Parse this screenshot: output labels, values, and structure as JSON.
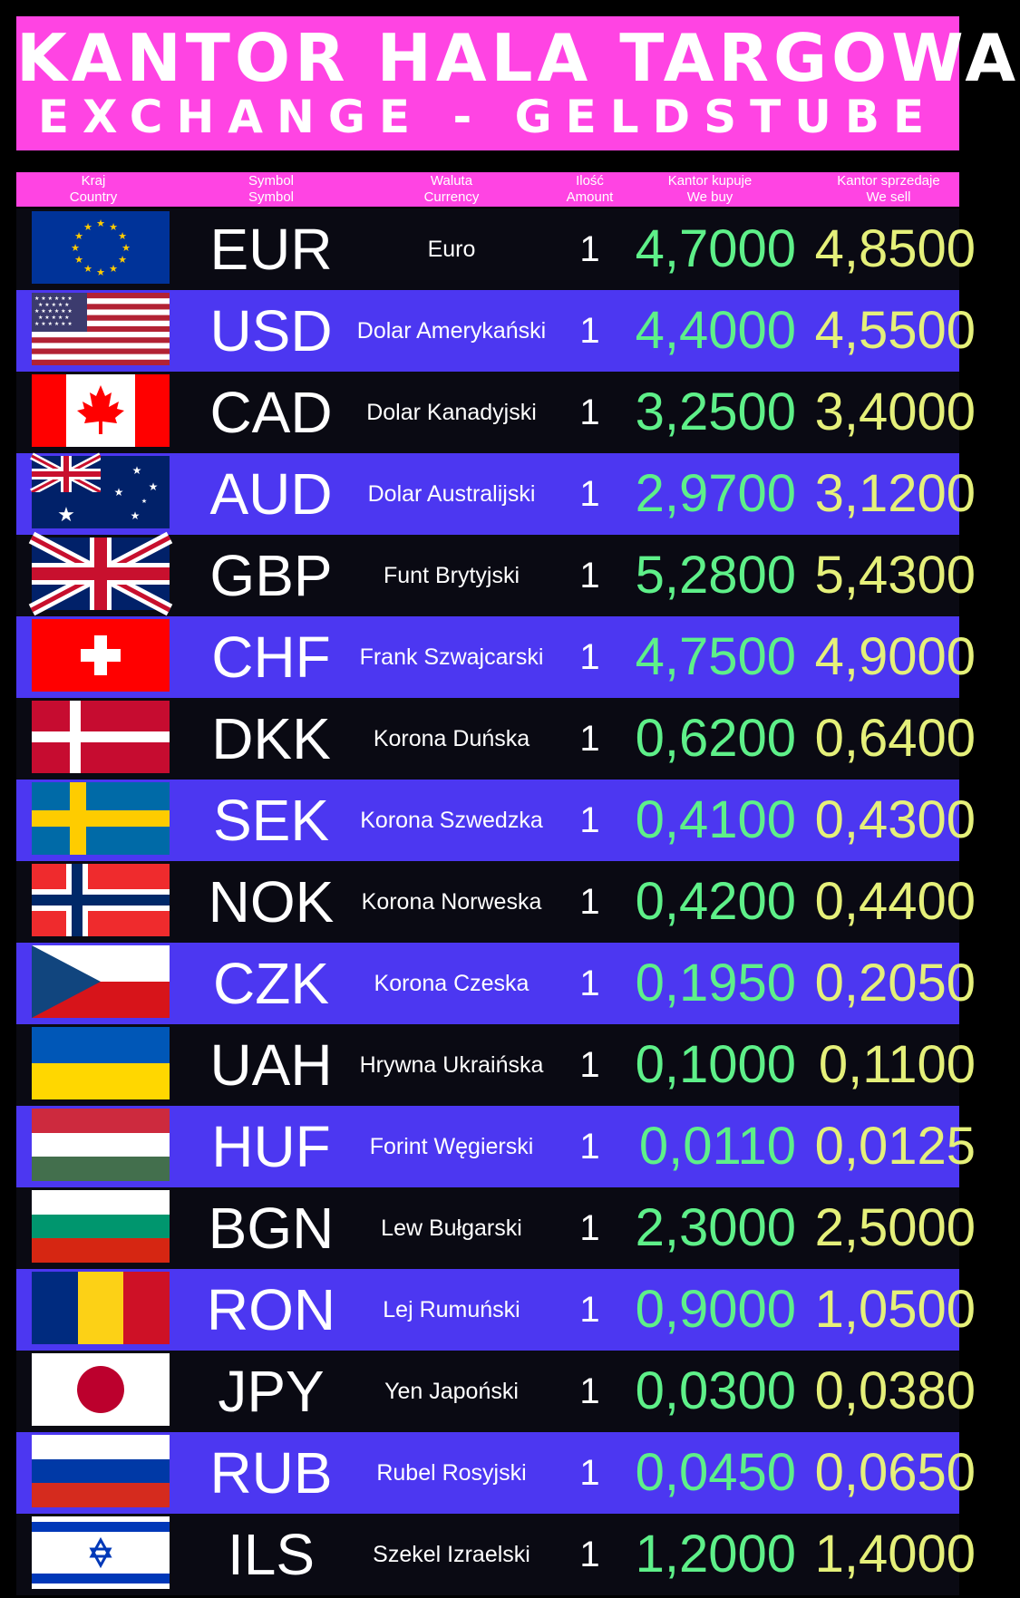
{
  "header": {
    "title": "KANTOR HALA TARGOWA",
    "subtitle": "EXCHANGE - GELDSTUBE"
  },
  "columns": [
    {
      "pl": "Kraj",
      "en": "Country"
    },
    {
      "pl": "Symbol",
      "en": "Symbol"
    },
    {
      "pl": "Waluta",
      "en": "Currency"
    },
    {
      "pl": "Ilość",
      "en": "Amount"
    },
    {
      "pl": "Kantor kupuje",
      "en": "We buy"
    },
    {
      "pl": "Kantor sprzedaje",
      "en": "We sell"
    }
  ],
  "rates": [
    {
      "flag": "eu-flag-icon",
      "symbol": "EUR",
      "currency": "Euro",
      "amount": "1",
      "buy": "4,7000",
      "sell": "4,8500"
    },
    {
      "flag": "us-flag-icon",
      "symbol": "USD",
      "currency": "Dolar Amerykański",
      "amount": "1",
      "buy": "4,4000",
      "sell": "4,5500"
    },
    {
      "flag": "ca-flag-icon",
      "symbol": "CAD",
      "currency": "Dolar Kanadyjski",
      "amount": "1",
      "buy": "3,2500",
      "sell": "3,4000"
    },
    {
      "flag": "au-flag-icon",
      "symbol": "AUD",
      "currency": "Dolar Australijski",
      "amount": "1",
      "buy": "2,9700",
      "sell": "3,1200"
    },
    {
      "flag": "gb-flag-icon",
      "symbol": "GBP",
      "currency": "Funt Brytyjski",
      "amount": "1",
      "buy": "5,2800",
      "sell": "5,4300"
    },
    {
      "flag": "ch-flag-icon",
      "symbol": "CHF",
      "currency": "Frank Szwajcarski",
      "amount": "1",
      "buy": "4,7500",
      "sell": "4,9000"
    },
    {
      "flag": "dk-flag-icon",
      "symbol": "DKK",
      "currency": "Korona Duńska",
      "amount": "1",
      "buy": "0,6200",
      "sell": "0,6400"
    },
    {
      "flag": "se-flag-icon",
      "symbol": "SEK",
      "currency": "Korona Szwedzka",
      "amount": "1",
      "buy": "0,4100",
      "sell": "0,4300"
    },
    {
      "flag": "no-flag-icon",
      "symbol": "NOK",
      "currency": "Korona Norweska",
      "amount": "1",
      "buy": "0,4200",
      "sell": "0,4400"
    },
    {
      "flag": "cz-flag-icon",
      "symbol": "CZK",
      "currency": "Korona Czeska",
      "amount": "1",
      "buy": "0,1950",
      "sell": "0,2050"
    },
    {
      "flag": "ua-flag-icon",
      "symbol": "UAH",
      "currency": "Hrywna Ukraińska",
      "amount": "1",
      "buy": "0,1000",
      "sell": "0,1100"
    },
    {
      "flag": "hu-flag-icon",
      "symbol": "HUF",
      "currency": "Forint Węgierski",
      "amount": "1",
      "buy": "0,0110",
      "sell": "0,0125"
    },
    {
      "flag": "bg-flag-icon",
      "symbol": "BGN",
      "currency": "Lew Bułgarski",
      "amount": "1",
      "buy": "2,3000",
      "sell": "2,5000"
    },
    {
      "flag": "ro-flag-icon",
      "symbol": "RON",
      "currency": "Lej Rumuński",
      "amount": "1",
      "buy": "0,9000",
      "sell": "1,0500"
    },
    {
      "flag": "jp-flag-icon",
      "symbol": "JPY",
      "currency": "Yen Japoński",
      "amount": "1",
      "buy": "0,0300",
      "sell": "0,0380"
    },
    {
      "flag": "ru-flag-icon",
      "symbol": "RUB",
      "currency": "Rubel Rosyjski",
      "amount": "1",
      "buy": "0,0450",
      "sell": "0,0650"
    },
    {
      "flag": "il-flag-icon",
      "symbol": "ILS",
      "currency": "Szekel Izraelski",
      "amount": "1",
      "buy": "1,2000",
      "sell": "1,4000"
    }
  ],
  "colors": {
    "banner": "#ff44e3",
    "row_dark": "#0a0a13",
    "row_blue": "#4c37f1",
    "buy_text": "#5ef089",
    "sell_text": "#e5f07a"
  }
}
